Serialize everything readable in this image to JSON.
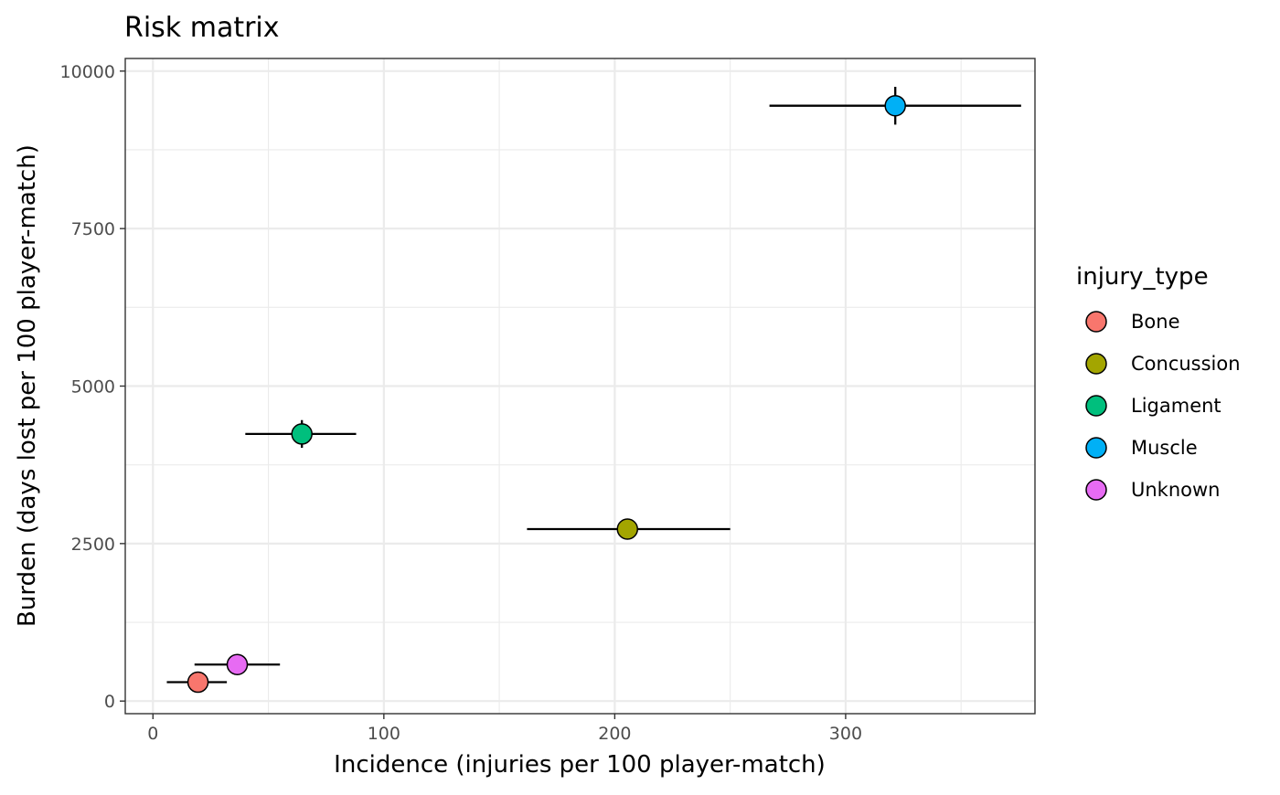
{
  "chart_data": {
    "type": "scatter",
    "title": "Risk matrix",
    "xlabel": "Incidence (injuries per 100 player-match)",
    "ylabel": "Burden (days lost per 100 player-match)",
    "xlim": [
      -12,
      382
    ],
    "ylim": [
      -200,
      10200
    ],
    "x_ticks": [
      0,
      100,
      200,
      300
    ],
    "y_ticks": [
      0,
      2500,
      5000,
      7500,
      10000
    ],
    "x_minor": [
      50,
      150,
      250,
      350
    ],
    "y_minor": [
      1250,
      3750,
      6250,
      8750
    ],
    "grid": true,
    "legend": {
      "title": "injury_type",
      "position": "right"
    },
    "series": [
      {
        "name": "Bone",
        "color": "#F8766D",
        "x": 19.5,
        "y": 300,
        "x_err": [
          6,
          32
        ],
        "y_err": [
          260,
          340
        ]
      },
      {
        "name": "Concussion",
        "color": "#A3A500",
        "x": 205.5,
        "y": 2730,
        "x_err": [
          162,
          250
        ],
        "y_err": [
          2680,
          2780
        ]
      },
      {
        "name": "Ligament",
        "color": "#00BF7D",
        "x": 64.5,
        "y": 4240,
        "x_err": [
          40,
          88
        ],
        "y_err": [
          4020,
          4460
        ]
      },
      {
        "name": "Muscle",
        "color": "#00B0F6",
        "x": 321.5,
        "y": 9450,
        "x_err": [
          267,
          376
        ],
        "y_err": [
          9150,
          9750
        ]
      },
      {
        "name": "Unknown",
        "color": "#E76BF3",
        "x": 36.5,
        "y": 580,
        "x_err": [
          18,
          55
        ],
        "y_err": [
          550,
          610
        ]
      }
    ]
  }
}
